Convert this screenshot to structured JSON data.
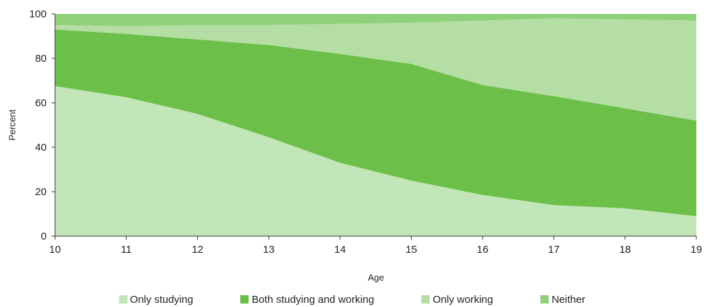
{
  "chart_data": {
    "type": "area",
    "stacked": true,
    "title": "",
    "xlabel": "Age",
    "ylabel": "Percent",
    "x": [
      10,
      11,
      12,
      13,
      14,
      15,
      16,
      17,
      18,
      19
    ],
    "xlim": [
      10,
      19
    ],
    "ylim": [
      0,
      100
    ],
    "xticks": [
      "10",
      "11",
      "12",
      "13",
      "14",
      "15",
      "16",
      "17",
      "18",
      "19"
    ],
    "yticks": [
      "0",
      "20",
      "40",
      "60",
      "80",
      "100"
    ],
    "grid": false,
    "legend_position": "bottom",
    "series": [
      {
        "name": "Only studying",
        "color": "#c3e6b8",
        "values": [
          67.5,
          62.5,
          55,
          44.5,
          33,
          25,
          18.5,
          14,
          12.5,
          9
        ]
      },
      {
        "name": "Both studying and working",
        "color": "#6cc04a",
        "values": [
          25.5,
          28.5,
          33.5,
          41.5,
          49,
          52.5,
          49.5,
          49,
          45,
          43
        ]
      },
      {
        "name": "Only working",
        "color": "#b5dea4",
        "values": [
          2,
          3.5,
          6.5,
          9,
          13.5,
          18.5,
          29,
          35,
          40,
          45
        ]
      },
      {
        "name": "Neither",
        "color": "#8fd07a",
        "values": [
          5,
          5.5,
          5,
          5,
          4.5,
          4,
          3,
          2,
          2.5,
          3
        ]
      }
    ]
  }
}
